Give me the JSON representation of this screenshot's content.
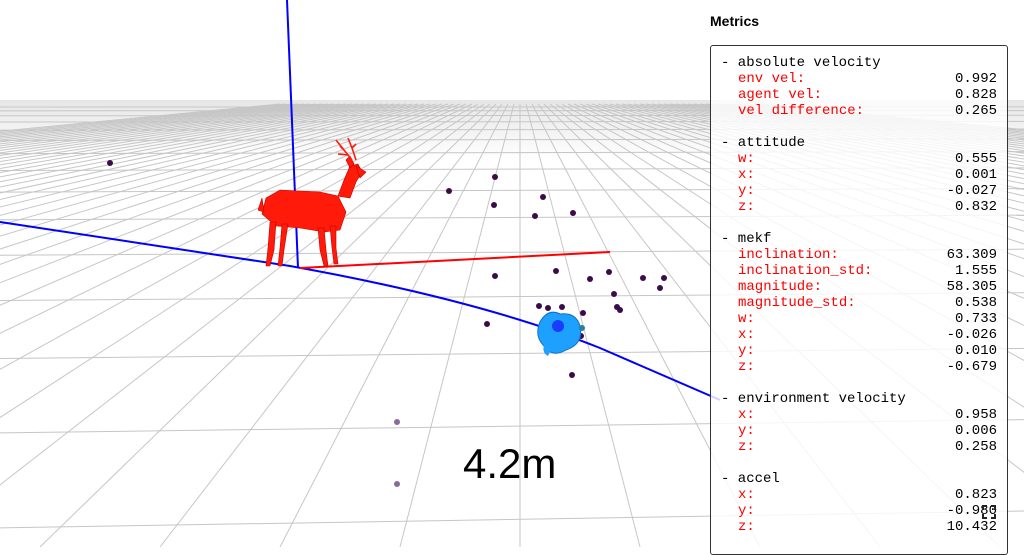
{
  "viewport": {
    "distance_label": "4.2m",
    "colors": {
      "grid": "#c8c8c8",
      "axis_blue": "#0000ff",
      "axis_red": "#ff0000",
      "deer": "#ff1a0a",
      "agent": "#1ea0ff",
      "points": "#3a0d4a"
    }
  },
  "panel": {
    "title": "Metrics",
    "sections": [
      {
        "name": "absolute velocity",
        "rows": [
          {
            "key": "env vel:",
            "value": "0.992"
          },
          {
            "key": "agent vel:",
            "value": "0.828"
          },
          {
            "key": "vel difference:",
            "value": "0.265"
          }
        ]
      },
      {
        "name": "attitude",
        "rows": [
          {
            "key": "w:",
            "value": "0.555"
          },
          {
            "key": "x:",
            "value": "0.001"
          },
          {
            "key": "y:",
            "value": "-0.027"
          },
          {
            "key": "z:",
            "value": "0.832"
          }
        ]
      },
      {
        "name": "mekf",
        "rows": [
          {
            "key": "inclination:",
            "value": "63.309"
          },
          {
            "key": "inclination_std:",
            "value": "1.555"
          },
          {
            "key": "magnitude:",
            "value": "58.305"
          },
          {
            "key": "magnitude_std:",
            "value": "0.538"
          },
          {
            "key": "w:",
            "value": "0.733"
          },
          {
            "key": "x:",
            "value": "-0.026"
          },
          {
            "key": "y:",
            "value": "0.010"
          },
          {
            "key": "z:",
            "value": "-0.679"
          }
        ]
      },
      {
        "name": "environment velocity",
        "rows": [
          {
            "key": "x:",
            "value": "0.958"
          },
          {
            "key": "y:",
            "value": "0.006"
          },
          {
            "key": "z:",
            "value": "0.258"
          }
        ]
      },
      {
        "name": "accel",
        "rows": [
          {
            "key": "x:",
            "value": "0.823"
          },
          {
            "key": "y:",
            "value": "-0.980"
          },
          {
            "key": "z:",
            "value": "10.432"
          }
        ]
      }
    ]
  }
}
